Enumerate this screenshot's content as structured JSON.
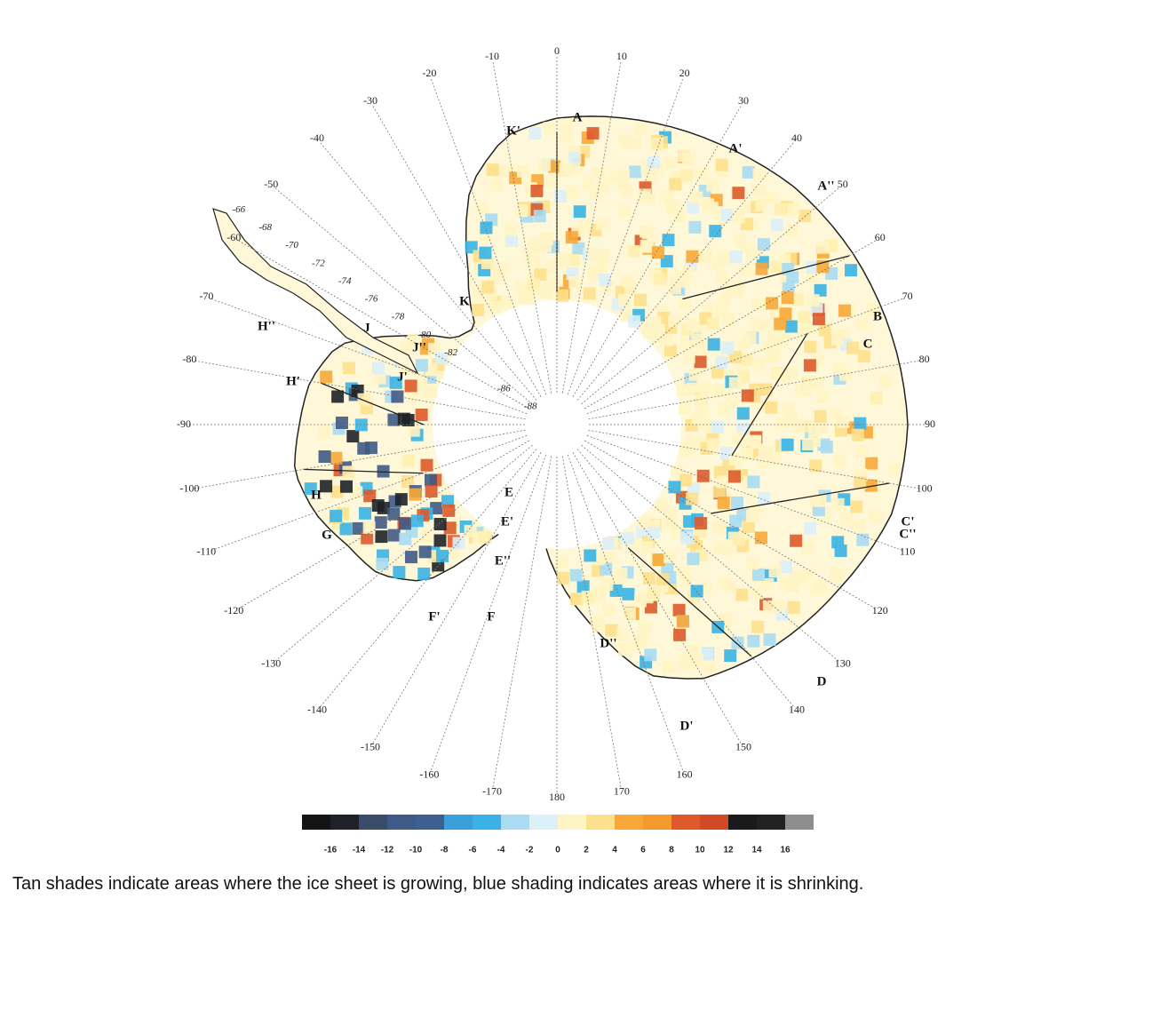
{
  "map": {
    "longitude_labels": [
      -170,
      -160,
      -150,
      -140,
      -130,
      -120,
      -110,
      -100,
      -90,
      -80,
      -70,
      -60,
      -50,
      -40,
      -30,
      -20,
      -10,
      0,
      10,
      20,
      30,
      40,
      50,
      60,
      70,
      80,
      90,
      100,
      110,
      120,
      130,
      140,
      150,
      160,
      170,
      180
    ],
    "latitude_labels": [
      -66,
      -68,
      -70,
      -72,
      -74,
      -76,
      -78,
      -80,
      -82,
      -86,
      -88
    ],
    "basin_labels": [
      "A",
      "A'",
      "A''",
      "B",
      "C",
      "C'",
      "C''",
      "D",
      "D'",
      "D''",
      "E",
      "E'",
      "E''",
      "F",
      "F'",
      "G",
      "H",
      "H'",
      "H''",
      "J",
      "J'",
      "J''",
      "K",
      "K'"
    ]
  },
  "colorbar": {
    "ticks": [
      -16,
      -14,
      -12,
      -10,
      -8,
      -6,
      -4,
      -2,
      0,
      2,
      4,
      6,
      8,
      10,
      12,
      14,
      16
    ],
    "colors": [
      "#141414",
      "#1e2228",
      "#3b4c6b",
      "#3f5a86",
      "#3d5f92",
      "#39a0da",
      "#3ab2e6",
      "#a9dbf2",
      "#dcf0f8",
      "#fff4c4",
      "#fde08c",
      "#f7a838",
      "#f39a2a",
      "#dd5a2a",
      "#d04b25",
      "#1a1a1a",
      "#222222",
      "#8e8e8e"
    ]
  },
  "caption": "Tan shades indicate areas where the ice sheet is growing, blue shading indicates areas where it is shrinking."
}
